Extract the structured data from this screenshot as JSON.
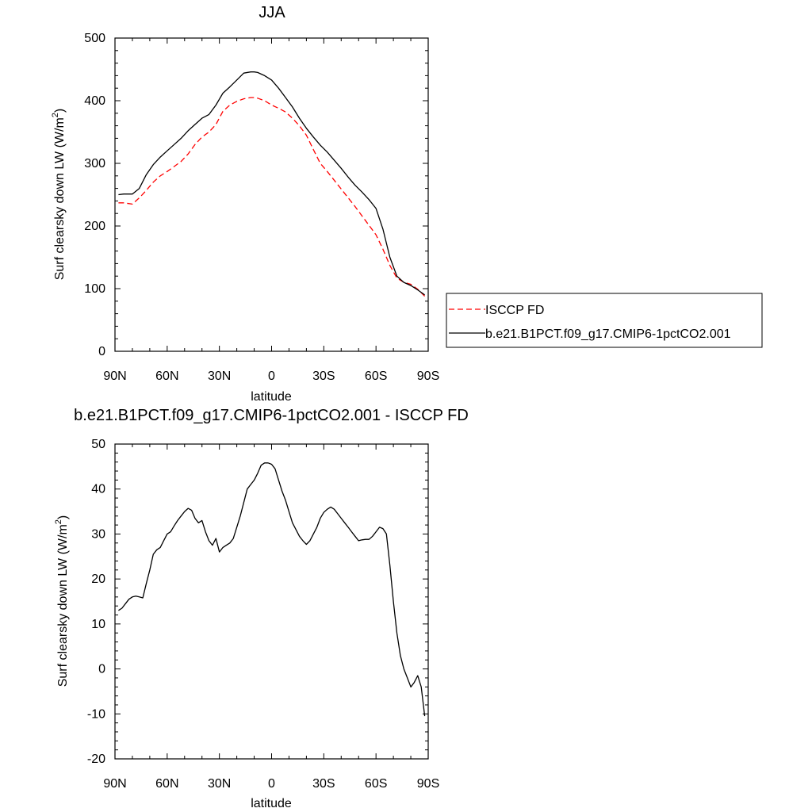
{
  "chart_data": [
    {
      "type": "line",
      "title": "JJA",
      "xlabel": "latitude",
      "ylabel": "Surf clearsky down LW (W/m",
      "ylabel_sup": "2",
      "ylabel_close": ")",
      "xlim": [
        90,
        -90
      ],
      "ylim": [
        0,
        500
      ],
      "yticks": [
        0,
        100,
        200,
        300,
        400,
        500
      ],
      "xticks": [
        90,
        60,
        30,
        0,
        -30,
        -60,
        -90
      ],
      "xtick_labels": [
        "90N",
        "60N",
        "30N",
        "0",
        "30S",
        "60S",
        "90S"
      ],
      "legend_position": "right",
      "series": [
        {
          "name": "ISCCP FD",
          "color": "#ff0000",
          "dash": "dashed",
          "x": [
            88,
            85,
            80,
            76,
            72,
            68,
            64,
            60,
            56,
            52,
            48,
            44,
            40,
            36,
            32,
            28,
            24,
            20,
            16,
            12,
            10,
            8,
            4,
            0,
            -4,
            -8,
            -12,
            -16,
            -20,
            -24,
            -28,
            -32,
            -36,
            -40,
            -44,
            -48,
            -52,
            -56,
            -60,
            -64,
            -68,
            -72,
            -76,
            -80,
            -84,
            -88
          ],
          "values": [
            237,
            237,
            235,
            245,
            257,
            270,
            280,
            287,
            295,
            303,
            315,
            330,
            342,
            350,
            362,
            383,
            393,
            399,
            403,
            405,
            405,
            404,
            400,
            393,
            388,
            382,
            372,
            360,
            345,
            322,
            300,
            287,
            273,
            259,
            245,
            231,
            216,
            201,
            186,
            163,
            137,
            117,
            110,
            107,
            99,
            88
          ]
        },
        {
          "name": "b.e21.B1PCT.f09_g17.CMIP6-1pctCO2.001",
          "color": "#000000",
          "dash": "solid",
          "x": [
            88,
            85,
            80,
            76,
            72,
            68,
            64,
            60,
            56,
            52,
            48,
            44,
            40,
            36,
            32,
            28,
            24,
            20,
            16,
            12,
            10,
            8,
            4,
            0,
            -4,
            -8,
            -12,
            -16,
            -20,
            -24,
            -28,
            -32,
            -36,
            -40,
            -44,
            -48,
            -52,
            -56,
            -60,
            -64,
            -68,
            -72,
            -76,
            -80,
            -84,
            -88
          ],
          "values": [
            250,
            251,
            251,
            260,
            282,
            298,
            310,
            320,
            330,
            340,
            352,
            362,
            372,
            378,
            393,
            412,
            422,
            433,
            444,
            446,
            446,
            445,
            440,
            433,
            420,
            405,
            390,
            372,
            356,
            342,
            329,
            318,
            305,
            292,
            278,
            265,
            254,
            242,
            228,
            195,
            150,
            120,
            110,
            105,
            98,
            90
          ]
        }
      ]
    },
    {
      "type": "line",
      "title": "b.e21.B1PCT.f09_g17.CMIP6-1pctCO2.001 - ISCCP FD",
      "xlabel": "latitude",
      "ylabel": "Surf clearsky down LW (W/m",
      "ylabel_sup": "2",
      "ylabel_close": ")",
      "xlim": [
        90,
        -90
      ],
      "ylim": [
        -20,
        50
      ],
      "yticks": [
        -20,
        -10,
        0,
        10,
        20,
        30,
        40,
        50
      ],
      "xticks": [
        90,
        60,
        30,
        0,
        -30,
        -60,
        -90
      ],
      "xtick_labels": [
        "90N",
        "60N",
        "30N",
        "0",
        "30S",
        "60S",
        "90S"
      ],
      "series": [
        {
          "color": "#000000",
          "dash": "solid",
          "x": [
            88,
            86,
            84,
            82,
            80,
            78,
            76,
            74,
            72,
            70,
            68,
            66,
            64,
            62,
            60,
            58,
            56,
            54,
            52,
            50,
            48,
            46,
            44,
            42,
            40,
            38,
            36,
            34,
            32,
            30,
            28,
            26,
            24,
            22,
            20,
            18,
            16,
            14,
            12,
            10,
            8,
            6,
            4,
            2,
            0,
            -2,
            -4,
            -6,
            -8,
            -10,
            -12,
            -14,
            -16,
            -18,
            -20,
            -22,
            -24,
            -26,
            -28,
            -30,
            -32,
            -34,
            -36,
            -38,
            -40,
            -42,
            -44,
            -46,
            -48,
            -50,
            -52,
            -54,
            -56,
            -58,
            -60,
            -62,
            -64,
            -66,
            -68,
            -70,
            -72,
            -74,
            -76,
            -78,
            -80,
            -82,
            -84,
            -86,
            -88
          ],
          "values": [
            13,
            13.5,
            14.5,
            15.5,
            16,
            16.2,
            16,
            15.8,
            19,
            22,
            25.5,
            26.5,
            27,
            28.5,
            30,
            30.5,
            31.8,
            33,
            34,
            35,
            35.7,
            35.3,
            33.5,
            32.5,
            33,
            30.5,
            28.5,
            27.5,
            29,
            26,
            27,
            27.5,
            28,
            29,
            31.5,
            34,
            37,
            40,
            41,
            42,
            43.5,
            45.3,
            45.8,
            45.8,
            45.5,
            44.5,
            42,
            39.5,
            37.5,
            35,
            32.5,
            31,
            29.5,
            28.5,
            27.7,
            28.5,
            30,
            31.5,
            33.5,
            34.8,
            35.5,
            36,
            35.5,
            34.5,
            33.5,
            32.5,
            31.5,
            30.5,
            29.5,
            28.5,
            28.7,
            28.8,
            28.8,
            29.5,
            30.5,
            31.5,
            31.2,
            30,
            23,
            15,
            8,
            3,
            0,
            -2,
            -4,
            -3,
            -1.5,
            -4,
            -10.5
          ]
        }
      ]
    }
  ]
}
